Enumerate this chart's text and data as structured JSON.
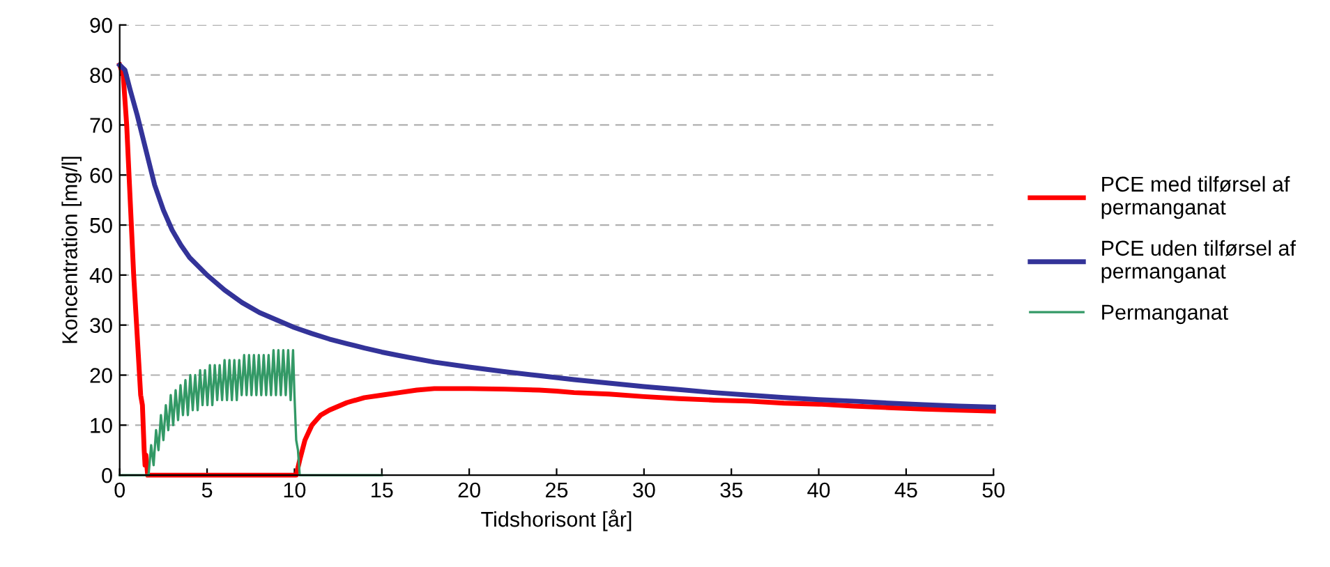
{
  "chart_data": {
    "type": "line",
    "xlabel": "Tidshorisont [år]",
    "ylabel": "Koncentration [mg/l]",
    "xlim": [
      0,
      50
    ],
    "ylim": [
      0,
      90
    ],
    "xticks": [
      0,
      5,
      10,
      15,
      20,
      25,
      30,
      35,
      40,
      45,
      50
    ],
    "yticks": [
      0,
      10,
      20,
      30,
      40,
      50,
      60,
      70,
      80,
      90
    ],
    "grid": "y",
    "legend": "right",
    "marker": "none",
    "line_style": "solid",
    "series": [
      {
        "name": "PCE med tilførsel af permanganat",
        "color": "#ff0000",
        "x": [
          0,
          0.2,
          0.4,
          0.6,
          0.8,
          1.0,
          1.2,
          1.3,
          1.4,
          1.45,
          1.5,
          1.6,
          10.1,
          10.3,
          10.6,
          11,
          11.5,
          12,
          13,
          14,
          15,
          16,
          17,
          18,
          20,
          22,
          24,
          25,
          26,
          28,
          30,
          32,
          34,
          36,
          38,
          40,
          42,
          44,
          46,
          48,
          50
        ],
        "values": [
          82,
          80,
          70,
          55,
          40,
          28,
          16,
          14,
          5,
          2,
          4,
          0,
          0,
          3,
          7,
          10,
          12,
          13,
          14.5,
          15.5,
          16,
          16.5,
          17,
          17.3,
          17.3,
          17.2,
          17,
          16.8,
          16.5,
          16.2,
          15.7,
          15.3,
          15,
          14.8,
          14.4,
          14.2,
          13.8,
          13.5,
          13.2,
          13,
          12.8
        ]
      },
      {
        "name": "PCE uden tilførsel af permanganat",
        "color": "#333399",
        "x": [
          0,
          0.3,
          0.6,
          1,
          1.5,
          2,
          2.5,
          3,
          3.5,
          4,
          5,
          6,
          7,
          8,
          9,
          10,
          11,
          12,
          13,
          14,
          15,
          16,
          18,
          20,
          22,
          24,
          26,
          28,
          30,
          32,
          34,
          36,
          38,
          40,
          42,
          44,
          46,
          48,
          50
        ],
        "values": [
          82,
          81,
          77,
          72,
          65,
          58,
          53,
          49,
          46,
          43.5,
          40,
          37,
          34.5,
          32.5,
          31,
          29.5,
          28.3,
          27.2,
          26.3,
          25.4,
          24.6,
          23.9,
          22.6,
          21.6,
          20.7,
          19.9,
          19.1,
          18.4,
          17.7,
          17.1,
          16.5,
          16,
          15.5,
          15.1,
          14.8,
          14.4,
          14.1,
          13.8,
          13.6
        ]
      },
      {
        "name": "Permanganat",
        "color": "#339966",
        "x": [
          0,
          1.65,
          1.8,
          1.94,
          2.08,
          2.22,
          2.36,
          2.5,
          2.64,
          2.78,
          2.92,
          3.06,
          3.2,
          3.34,
          3.48,
          3.62,
          3.76,
          3.9,
          4.04,
          4.18,
          4.32,
          4.46,
          4.6,
          4.74,
          4.88,
          5.02,
          5.16,
          5.3,
          5.44,
          5.58,
          5.72,
          5.86,
          6.0,
          6.14,
          6.28,
          6.42,
          6.56,
          6.7,
          6.84,
          6.98,
          7.12,
          7.26,
          7.4,
          7.54,
          7.68,
          7.82,
          7.96,
          8.1,
          8.24,
          8.38,
          8.52,
          8.66,
          8.8,
          8.94,
          9.08,
          9.22,
          9.36,
          9.5,
          9.64,
          9.78,
          9.92,
          10.0,
          10.1,
          10.2,
          10.3,
          15
        ],
        "values": [
          0,
          0,
          6,
          2,
          9,
          5,
          12,
          7,
          14,
          9,
          16,
          10,
          17,
          11,
          18,
          12,
          19,
          12,
          20,
          13,
          20,
          13,
          21,
          14,
          21,
          14,
          22,
          14,
          22,
          15,
          22,
          15,
          23,
          15,
          23,
          15,
          23,
          15,
          23,
          16,
          24,
          16,
          24,
          16,
          24,
          16,
          24,
          16,
          24,
          16,
          24,
          16,
          25,
          16,
          25,
          16,
          25,
          16,
          25,
          15,
          25,
          16,
          7,
          5,
          0,
          0
        ]
      }
    ]
  }
}
